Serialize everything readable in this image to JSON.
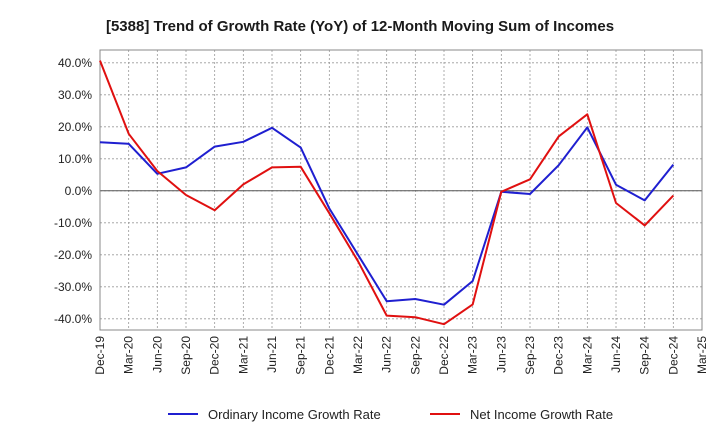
{
  "chart_data": {
    "type": "line",
    "title": "[5388]  Trend of Growth Rate (YoY) of 12-Month Moving Sum of Incomes",
    "xlabel": "",
    "ylabel": "",
    "categories": [
      "Dec-19",
      "Mar-20",
      "Jun-20",
      "Sep-20",
      "Dec-20",
      "Mar-21",
      "Jun-21",
      "Sep-21",
      "Dec-21",
      "Mar-22",
      "Jun-22",
      "Sep-22",
      "Dec-22",
      "Mar-23",
      "Jun-23",
      "Sep-23",
      "Dec-23",
      "Mar-24",
      "Jun-24",
      "Sep-24",
      "Dec-24",
      "Mar-25"
    ],
    "y_ticks": [
      "40.0%",
      "30.0%",
      "20.0%",
      "10.0%",
      "0.0%",
      "-10.0%",
      "-20.0%",
      "-30.0%",
      "-40.0%"
    ],
    "ylim": [
      -43.5,
      44
    ],
    "grid": true,
    "legend_position": "bottom",
    "series": [
      {
        "name": "Ordinary Income Growth Rate",
        "color": "#1f1fd0",
        "values": [
          15.2,
          14.7,
          5.3,
          7.3,
          13.8,
          15.3,
          19.7,
          13.5,
          -5.5,
          -20.0,
          -34.5,
          -33.8,
          -35.6,
          -28.2,
          -0.3,
          -1.0,
          8.0,
          19.8,
          1.9,
          -3.0,
          8.2,
          null
        ]
      },
      {
        "name": "Net Income Growth Rate",
        "color": "#e01010",
        "values": [
          40.7,
          17.8,
          6.2,
          -1.3,
          -6.1,
          2.0,
          7.3,
          7.5,
          -7.0,
          -22.0,
          -39.0,
          -39.5,
          -41.7,
          -35.5,
          -0.3,
          3.6,
          17.0,
          23.9,
          -3.8,
          -10.8,
          -1.5,
          null
        ]
      }
    ]
  }
}
